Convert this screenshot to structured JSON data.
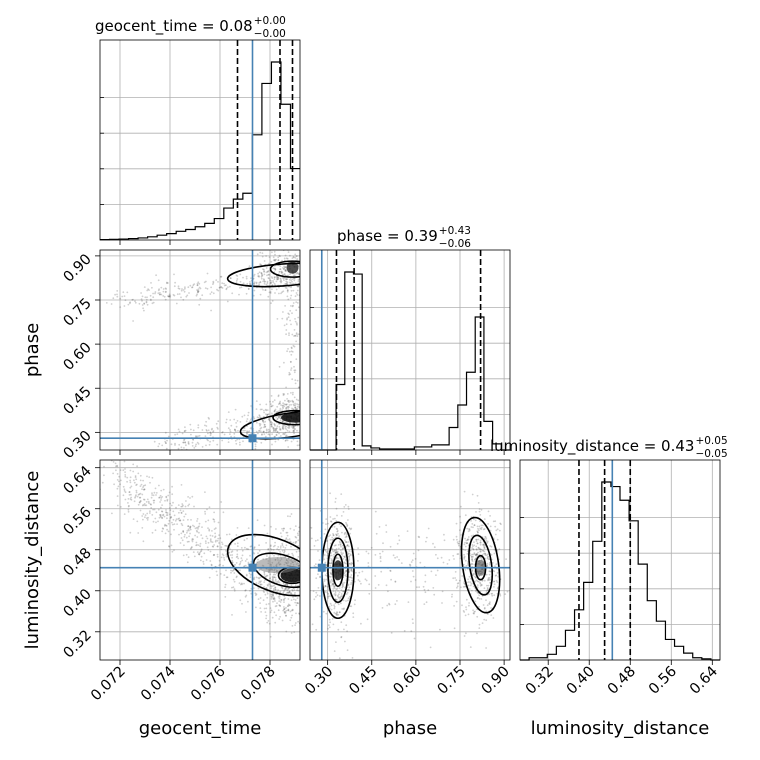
{
  "chart_data": {
    "type": "corner",
    "parameters": [
      "geocent_time",
      "phase",
      "luminosity_distance"
    ],
    "axis_labels": [
      "geocent_time",
      "phase",
      "luminosity_distance"
    ],
    "truths": [
      0.0773,
      0.28,
      0.445
    ],
    "ranges": [
      [
        0.0712,
        0.0792
      ],
      [
        0.24,
        0.92
      ],
      [
        0.265,
        0.655
      ]
    ],
    "ticks": [
      {
        "values": [
          0.072,
          0.074,
          0.076,
          0.078
        ],
        "labels": [
          "0.072",
          "0.074",
          "0.076",
          "0.078"
        ]
      },
      {
        "values": [
          0.3,
          0.45,
          0.6,
          0.75,
          0.9
        ],
        "labels": [
          "0.30",
          "0.45",
          "0.60",
          "0.75",
          "0.90"
        ]
      },
      {
        "values": [
          0.32,
          0.4,
          0.48,
          0.56,
          0.64
        ],
        "labels": [
          "0.32",
          "0.40",
          "0.48",
          "0.56",
          "0.64"
        ]
      }
    ],
    "titles": [
      {
        "main": "geocent_time = 0.08",
        "up": "+0.00",
        "down": "−0.00"
      },
      {
        "main": "phase = 0.39",
        "up": "+0.43",
        "down": "−0.06"
      },
      {
        "main": "luminosity_distance = 0.43",
        "up": "+0.05",
        "down": "−0.05"
      }
    ],
    "quantiles": [
      [
        0.0767,
        0.0784,
        0.0789
      ],
      [
        0.33,
        0.39,
        0.82
      ],
      [
        0.38,
        0.43,
        0.48
      ]
    ],
    "histograms": [
      {
        "edges_range": [
          0.0712,
          0.0792
        ],
        "counts": [
          0.2,
          0.3,
          0.4,
          0.6,
          0.9,
          1.4,
          2.1,
          2.8,
          3.8,
          4.6,
          5.8,
          7.3,
          9.4,
          14,
          17.9,
          20.5,
          46.1,
          68.6,
          78,
          59.5,
          31.3
        ]
      },
      {
        "edges_range": [
          0.24,
          0.92
        ],
        "counts": [
          0,
          0,
          0,
          32,
          87,
          86,
          2,
          1,
          0.5,
          0.5,
          0.5,
          0.5,
          1.5,
          1.5,
          2.5,
          2.5,
          11,
          22,
          38,
          65,
          14,
          3,
          0
        ]
      },
      {
        "edges_range": [
          0.265,
          0.655
        ],
        "counts": [
          0,
          1,
          1,
          2.5,
          6,
          13,
          22,
          34,
          52,
          78,
          76,
          70,
          61,
          42,
          26,
          17,
          9,
          6,
          3,
          1,
          0.5,
          0
        ]
      }
    ]
  }
}
